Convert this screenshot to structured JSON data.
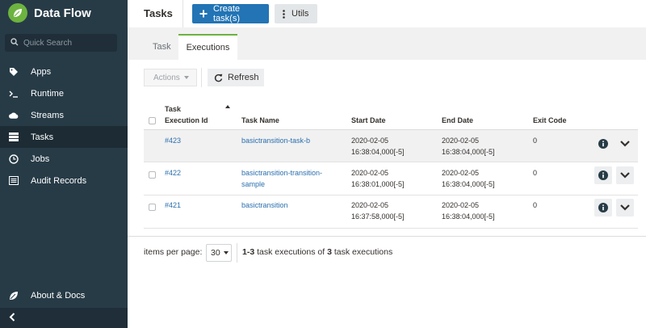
{
  "app": {
    "name": "Data Flow"
  },
  "search": {
    "placeholder": "Quick Search"
  },
  "nav": {
    "items": [
      {
        "label": "Apps",
        "icon": "tags-icon"
      },
      {
        "label": "Runtime",
        "icon": "terminal-icon"
      },
      {
        "label": "Streams",
        "icon": "cloud-icon"
      },
      {
        "label": "Tasks",
        "icon": "tasks-icon",
        "active": true
      },
      {
        "label": "Jobs",
        "icon": "clock-icon"
      },
      {
        "label": "Audit Records",
        "icon": "list-icon"
      }
    ],
    "about": {
      "label": "About & Docs",
      "icon": "leaf-icon"
    }
  },
  "header": {
    "title": "Tasks",
    "create_label": "Create task(s)",
    "utils_label": "Utils"
  },
  "tabs": [
    {
      "label": "Task"
    },
    {
      "label": "Executions",
      "active": true
    }
  ],
  "toolbar": {
    "actions_label": "Actions",
    "refresh_label": "Refresh"
  },
  "table": {
    "headers": {
      "id_line1": "Task",
      "id_line2": "Execution Id",
      "name": "Task Name",
      "start": "Start Date",
      "end": "End Date",
      "exit": "Exit Code"
    },
    "rows": [
      {
        "id": "#423",
        "name": "basictransition-task-b",
        "start_date": "2020-02-05",
        "start_time": "16:38:04,000[-5]",
        "end_date": "2020-02-05",
        "end_time": "16:38:04,000[-5]",
        "exit_code": "0"
      },
      {
        "id": "#422",
        "name": "basictransition-transition-sample",
        "start_date": "2020-02-05",
        "start_time": "16:38:01,000[-5]",
        "end_date": "2020-02-05",
        "end_time": "16:38:04,000[-5]",
        "exit_code": "0"
      },
      {
        "id": "#421",
        "name": "basictransition",
        "start_date": "2020-02-05",
        "start_time": "16:37:58,000[-5]",
        "end_date": "2020-02-05",
        "end_time": "16:38:04,000[-5]",
        "exit_code": "0"
      }
    ]
  },
  "pagination": {
    "items_per_page_label": "items per page:",
    "items_per_page_value": "30",
    "range": "1-3",
    "middle_text": " task executions of ",
    "total": "3",
    "suffix_text": " task executions"
  },
  "colors": {
    "sidebar": "#273b47",
    "primary": "#2274b5",
    "accent": "#6db33f",
    "link": "#2a6fae"
  }
}
